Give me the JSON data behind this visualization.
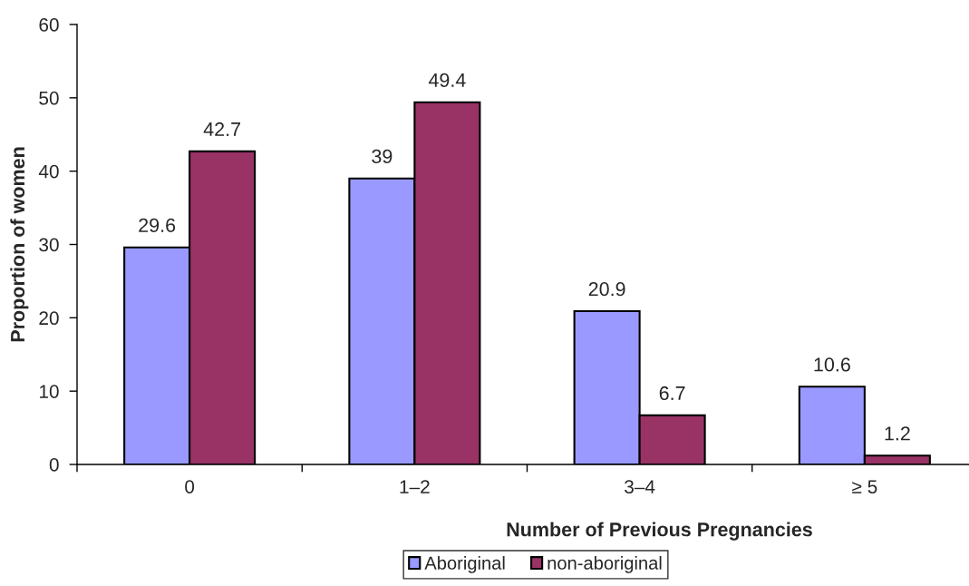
{
  "chart_data": {
    "type": "bar",
    "xlabel": "Number of Previous Pregnancies",
    "ylabel": "Proportion of women",
    "categories": [
      "0",
      "1–2",
      "3–4",
      "≥ 5"
    ],
    "series": [
      {
        "name": "Aboriginal",
        "color": "#9999ff",
        "values": [
          29.6,
          39,
          20.9,
          10.6
        ]
      },
      {
        "name": "non-aboriginal",
        "color": "#993366",
        "values": [
          42.7,
          49.4,
          6.7,
          1.2
        ]
      }
    ],
    "ylim": [
      0,
      60
    ],
    "yticks": [
      0,
      10,
      20,
      30,
      40,
      50,
      60
    ],
    "data_labels": true,
    "legend": "bottom",
    "grid": false
  }
}
